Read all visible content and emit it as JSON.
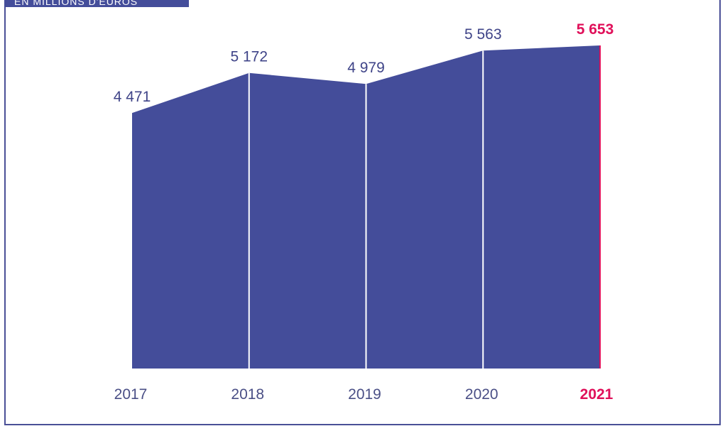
{
  "unit_label": "EN MILLIONS D'EUROS",
  "colors": {
    "area": "#444d9a",
    "divider": "#ffffff",
    "highlight": "#e0105a",
    "label": "#3f4488",
    "frame": "#4a5097"
  },
  "chart_data": {
    "type": "area",
    "x": [
      "2017",
      "2018",
      "2019",
      "2020",
      "2021"
    ],
    "values": [
      4471,
      5172,
      4979,
      5563,
      5653
    ],
    "value_labels": [
      "4 471",
      "5 172",
      "4 979",
      "5 563",
      "5 653"
    ],
    "highlight_index": 4,
    "ylim": [
      0,
      5653
    ],
    "grid": false,
    "legend": "none"
  }
}
